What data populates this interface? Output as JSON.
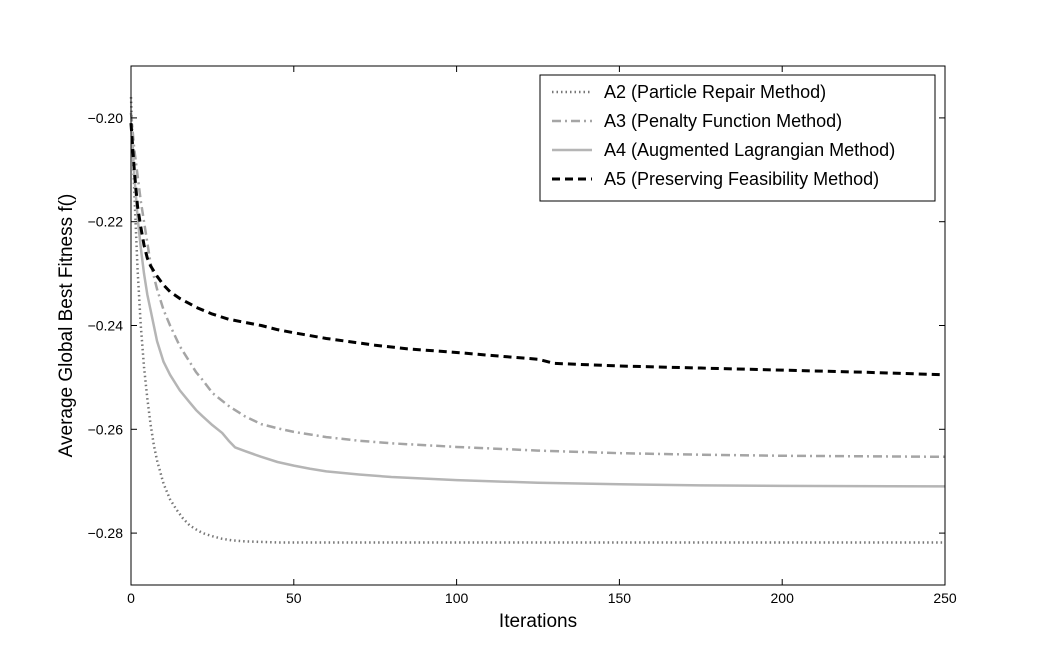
{
  "chart_data": {
    "type": "line",
    "title": "",
    "xlabel": "Iterations",
    "ylabel": "Average Global Best Fitness f()",
    "xlim": [
      0,
      250
    ],
    "ylim": [
      -0.29,
      -0.19
    ],
    "xticks": [
      0,
      50,
      100,
      150,
      200,
      250
    ],
    "xtick_labels": [
      "0",
      "50",
      "100",
      "150",
      "200",
      "250"
    ],
    "yticks": [
      -0.28,
      -0.26,
      -0.24,
      -0.22,
      -0.2
    ],
    "ytick_labels": [
      "−0.28",
      "−0.26",
      "−0.24",
      "−0.22",
      "−0.20"
    ],
    "grid": false,
    "legend_position": "top-right",
    "series": [
      {
        "name": "A2 (Particle Repair Method)",
        "color": "#777777",
        "style": "dotted",
        "x": [
          0,
          1,
          2,
          3,
          4,
          5,
          6,
          7,
          8,
          10,
          12,
          14,
          16,
          18,
          20,
          22,
          25,
          28,
          31,
          35,
          40,
          45,
          50,
          60,
          80,
          100,
          150,
          200,
          250
        ],
        "y": [
          -0.196,
          -0.214,
          -0.229,
          -0.24,
          -0.248,
          -0.254,
          -0.259,
          -0.263,
          -0.266,
          -0.2705,
          -0.2735,
          -0.2755,
          -0.2772,
          -0.2785,
          -0.2793,
          -0.28,
          -0.2806,
          -0.2811,
          -0.2814,
          -0.2816,
          -0.2817,
          -0.2818,
          -0.2818,
          -0.2818,
          -0.2818,
          -0.2818,
          -0.2818,
          -0.2818,
          -0.2818
        ]
      },
      {
        "name": "A3 (Penalty Function Method)",
        "color": "#a5a5a5",
        "style": "dashdot",
        "x": [
          0,
          1,
          2,
          3,
          4,
          5,
          6,
          8,
          10,
          12,
          15,
          18,
          20,
          22,
          25,
          30,
          35,
          40,
          45,
          50,
          60,
          70,
          80,
          100,
          125,
          150,
          175,
          200,
          225,
          250
        ],
        "y": [
          -0.199,
          -0.206,
          -0.211,
          -0.216,
          -0.22,
          -0.224,
          -0.228,
          -0.233,
          -0.237,
          -0.24,
          -0.244,
          -0.247,
          -0.249,
          -0.2505,
          -0.253,
          -0.2555,
          -0.2575,
          -0.259,
          -0.2598,
          -0.2605,
          -0.2615,
          -0.2622,
          -0.2627,
          -0.2634,
          -0.2641,
          -0.2646,
          -0.2649,
          -0.2651,
          -0.2652,
          -0.2653
        ]
      },
      {
        "name": "A4 (Augmented Lagrangian Method)",
        "color": "#b5b5b5",
        "style": "solid",
        "x": [
          0,
          1,
          2,
          3,
          4,
          5,
          6,
          8,
          10,
          12,
          15,
          18,
          20,
          22,
          25,
          28,
          30,
          32,
          35,
          40,
          45,
          50,
          55,
          60,
          70,
          80,
          100,
          125,
          150,
          175,
          200,
          250
        ],
        "y": [
          -0.201,
          -0.211,
          -0.219,
          -0.225,
          -0.23,
          -0.234,
          -0.237,
          -0.243,
          -0.247,
          -0.2495,
          -0.2525,
          -0.2548,
          -0.2563,
          -0.2575,
          -0.2592,
          -0.2607,
          -0.2622,
          -0.2635,
          -0.2642,
          -0.2653,
          -0.2663,
          -0.267,
          -0.2676,
          -0.2681,
          -0.2687,
          -0.2692,
          -0.2698,
          -0.2703,
          -0.2706,
          -0.2708,
          -0.2709,
          -0.271
        ]
      },
      {
        "name": "A5 (Preserving Feasibility Method)",
        "color": "#000000",
        "style": "dashed",
        "x": [
          0,
          1,
          2,
          3,
          4,
          5,
          6,
          8,
          10,
          12,
          15,
          18,
          20,
          25,
          30,
          35,
          40,
          45,
          50,
          60,
          75,
          85,
          100,
          115,
          125,
          130,
          150,
          175,
          200,
          225,
          250
        ],
        "y": [
          -0.201,
          -0.21,
          -0.217,
          -0.221,
          -0.2245,
          -0.227,
          -0.2285,
          -0.2305,
          -0.2322,
          -0.2335,
          -0.2348,
          -0.2358,
          -0.2365,
          -0.2378,
          -0.2388,
          -0.2394,
          -0.24,
          -0.2408,
          -0.2414,
          -0.2425,
          -0.2438,
          -0.2445,
          -0.2452,
          -0.246,
          -0.2465,
          -0.2473,
          -0.2478,
          -0.2482,
          -0.2486,
          -0.249,
          -0.2495
        ]
      }
    ]
  }
}
